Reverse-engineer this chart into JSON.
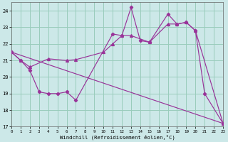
{
  "xlabel": "Windchill (Refroidissement éolien,°C)",
  "bg_color": "#cce8e8",
  "line_color": "#993399",
  "grid_color": "#99ccbb",
  "xlim": [
    0,
    23
  ],
  "ylim": [
    17,
    24.5
  ],
  "yticks": [
    17,
    18,
    19,
    20,
    21,
    22,
    23,
    24
  ],
  "xticks": [
    0,
    1,
    2,
    3,
    4,
    5,
    6,
    7,
    8,
    9,
    10,
    11,
    12,
    13,
    14,
    15,
    16,
    17,
    18,
    19,
    20,
    21,
    22,
    23
  ],
  "series1_x": [
    0,
    1,
    2,
    3,
    4,
    5,
    6,
    7,
    11,
    12,
    13,
    14,
    15,
    17,
    18,
    19,
    20,
    21,
    23
  ],
  "series1_y": [
    21.5,
    21.0,
    20.4,
    19.1,
    19.0,
    19.0,
    19.1,
    18.6,
    22.6,
    22.5,
    24.2,
    22.2,
    22.1,
    23.8,
    23.2,
    23.3,
    22.8,
    19.0,
    17.2
  ],
  "series2_x": [
    0,
    23
  ],
  "series2_y": [
    21.5,
    17.2
  ],
  "series3_x": [
    0,
    1,
    2,
    4,
    6,
    7,
    10,
    11,
    12,
    13,
    15,
    17,
    18,
    19,
    20,
    23
  ],
  "series3_y": [
    21.5,
    21.0,
    20.6,
    21.1,
    21.0,
    21.05,
    21.5,
    22.0,
    22.5,
    22.5,
    22.1,
    23.2,
    23.2,
    23.3,
    22.8,
    17.2
  ]
}
